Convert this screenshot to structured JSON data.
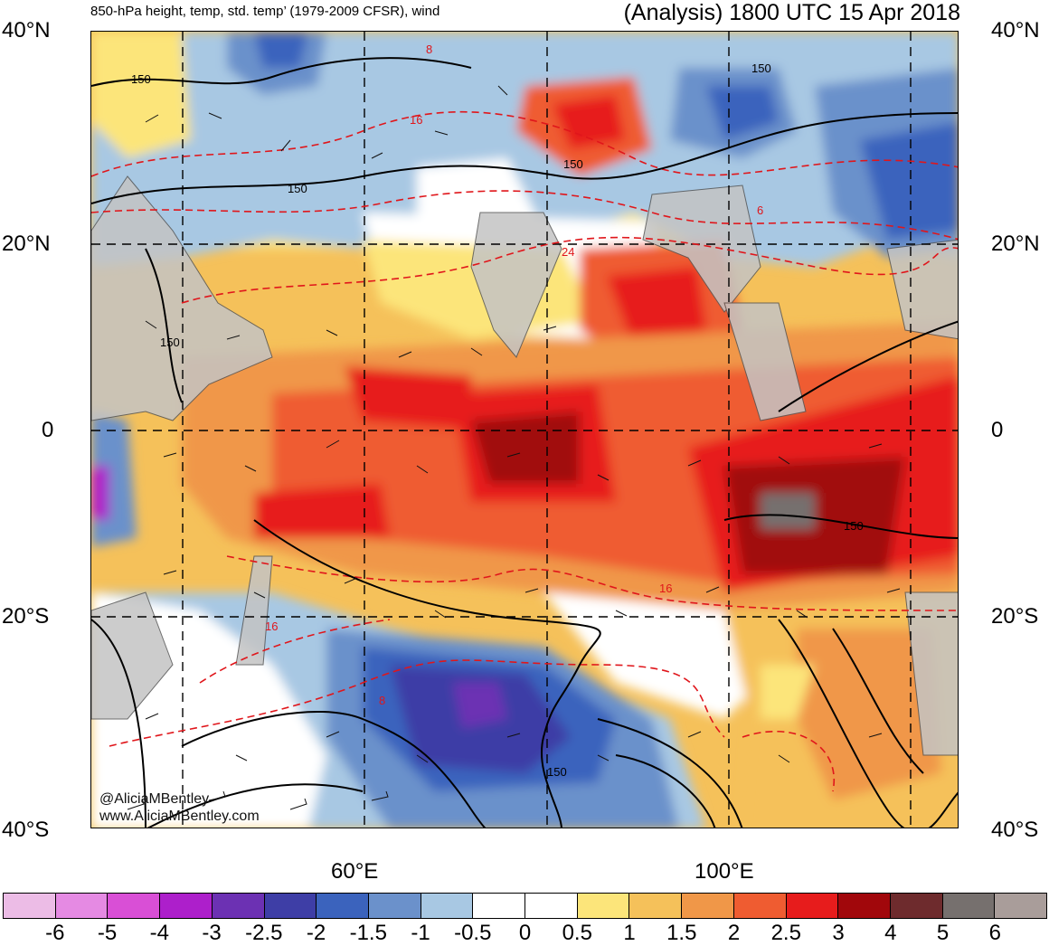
{
  "header": {
    "left_title": "850-hPa height, temp, std. temp’ (1979-2009 CFSR), wind",
    "right_title": "(Analysis) 1800 UTC 15 Apr 2018"
  },
  "axes": {
    "lat_labels": [
      "40°N",
      "20°N",
      "0",
      "20°S",
      "40°S"
    ],
    "lon_labels": [
      "60°E",
      "100°E"
    ]
  },
  "contours": {
    "height_labels": [
      "150",
      "150",
      "150",
      "150",
      "150",
      "150",
      "150"
    ],
    "temp_labels": [
      "8",
      "16",
      "6",
      "24",
      "16",
      "16",
      "8"
    ]
  },
  "credits": {
    "twitter": "@AliciaMBentley",
    "website": "www.AliciaMBentley.com"
  },
  "colorbar": {
    "colors": [
      "#ecbce6",
      "#e58ae3",
      "#d94fd6",
      "#ad1fcb",
      "#6c31b3",
      "#3e3ea6",
      "#3b63bd",
      "#6b91cb",
      "#a8c8e3",
      "#ffffff",
      "#ffffff",
      "#fce57a",
      "#f5c15a",
      "#f09748",
      "#ef5c31",
      "#e71c1c",
      "#a1070b",
      "#6e2b2d",
      "#76706e",
      "#a99d9a"
    ],
    "tick_labels": [
      "-6",
      "-5",
      "-4",
      "-3",
      "-2.5",
      "-2",
      "-1.5",
      "-1",
      "-0.5",
      "0",
      "0.5",
      "1",
      "1.5",
      "2",
      "2.5",
      "3",
      "4",
      "5",
      "6"
    ]
  }
}
